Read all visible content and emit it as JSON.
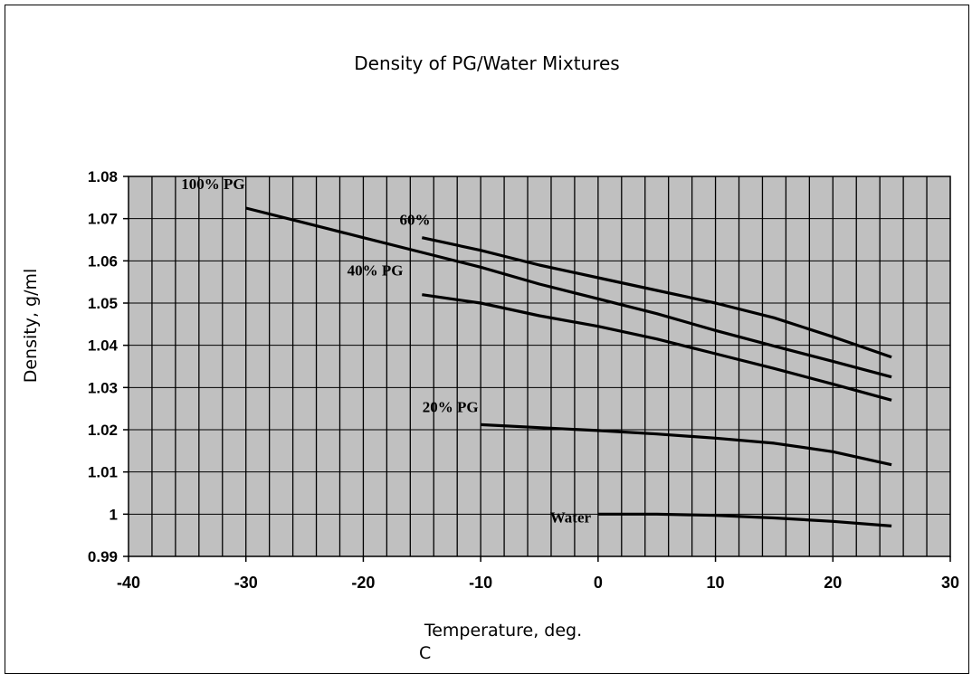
{
  "chart_data": {
    "type": "line",
    "title": "Density of PG/Water Mixtures",
    "xlabel_line1": "Temperature, deg.",
    "xlabel_line2": "C",
    "ylabel": "Density, g/ml",
    "xlim": [
      -40,
      30
    ],
    "ylim": [
      0.99,
      1.08
    ],
    "x_ticks": [
      "-40",
      "-30",
      "-20",
      "-10",
      "0",
      "10",
      "20",
      "30"
    ],
    "y_ticks": [
      "1.08",
      "1.07",
      "1.06",
      "1.05",
      "1.04",
      "1.03",
      "1.02",
      "1.01",
      "1",
      "0.99"
    ],
    "grid": true,
    "series": [
      {
        "name": "100% PG",
        "points": [
          [
            -30,
            1.0725
          ],
          [
            -25,
            1.069
          ],
          [
            -20,
            1.0655
          ],
          [
            -15,
            1.062
          ],
          [
            -10,
            1.0585
          ],
          [
            -5,
            1.0545
          ],
          [
            0,
            1.051
          ],
          [
            5,
            1.0475
          ],
          [
            10,
            1.0435
          ],
          [
            15,
            1.0398
          ],
          [
            20,
            1.0362
          ],
          [
            25,
            1.0325
          ]
        ]
      },
      {
        "name": "60%",
        "points": [
          [
            -15,
            1.0655
          ],
          [
            -10,
            1.0625
          ],
          [
            -5,
            1.059
          ],
          [
            0,
            1.056
          ],
          [
            5,
            1.053
          ],
          [
            10,
            1.05
          ],
          [
            15,
            1.0465
          ],
          [
            20,
            1.042
          ],
          [
            25,
            1.0372
          ]
        ]
      },
      {
        "name": "40% PG",
        "points": [
          [
            -15,
            1.052
          ],
          [
            -10,
            1.05
          ],
          [
            -5,
            1.047
          ],
          [
            0,
            1.0445
          ],
          [
            5,
            1.0415
          ],
          [
            10,
            1.038
          ],
          [
            15,
            1.0345
          ],
          [
            20,
            1.0308
          ],
          [
            25,
            1.027
          ]
        ]
      },
      {
        "name": "20% PG",
        "points": [
          [
            -10,
            1.0212
          ],
          [
            -5,
            1.0205
          ],
          [
            0,
            1.0198
          ],
          [
            5,
            1.019
          ],
          [
            10,
            1.018
          ],
          [
            15,
            1.0168
          ],
          [
            20,
            1.0148
          ],
          [
            25,
            1.0117
          ]
        ]
      },
      {
        "name": "Water",
        "points": [
          [
            0,
            1.0
          ],
          [
            5,
            1.0
          ],
          [
            10,
            0.9997
          ],
          [
            15,
            0.9991
          ],
          [
            20,
            0.9983
          ],
          [
            25,
            0.9972
          ]
        ]
      }
    ]
  }
}
